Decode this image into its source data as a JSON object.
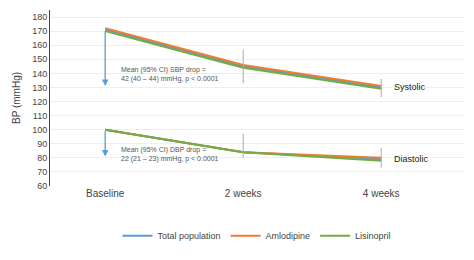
{
  "chart_data": {
    "type": "line",
    "categories": [
      "Baseline",
      "2 weeks",
      "4 weeks"
    ],
    "series": [
      {
        "name": "Total population",
        "color": "#5b9bd5",
        "values": [
          171,
          145,
          130
        ]
      },
      {
        "name": "Amlodipine",
        "color": "#ed7d31",
        "values": [
          172,
          146,
          131
        ]
      },
      {
        "name": "Lisinopril",
        "color": "#70ad47",
        "values": [
          170,
          144,
          129
        ]
      },
      {
        "name": "Total population",
        "color": "#5b9bd5",
        "values": [
          100,
          84,
          79
        ]
      },
      {
        "name": "Amlodipine",
        "color": "#ed7d31",
        "values": [
          100,
          84,
          80
        ]
      },
      {
        "name": "Lisinopril",
        "color": "#70ad47",
        "values": [
          100,
          84,
          78
        ]
      }
    ],
    "ylabel": "BP (mmHg)",
    "ylim": [
      60,
      185
    ],
    "yticks": [
      60,
      70,
      80,
      90,
      100,
      110,
      120,
      130,
      140,
      150,
      160,
      170,
      180
    ],
    "grid": true,
    "legend": "bottom",
    "arrows": [
      {
        "x": 0,
        "y_start": 171,
        "y_end": 131,
        "color": "#5b9bd5"
      },
      {
        "x": 0,
        "y_start": 100,
        "y_end": 81,
        "color": "#5b9bd5"
      }
    ],
    "vlines": [
      {
        "x": 1,
        "ymin": 133,
        "ymax": 157,
        "color": "#aaaaaa"
      },
      {
        "x": 2,
        "ymin": 123,
        "ymax": 136,
        "color": "#aaaaaa"
      },
      {
        "x": 1,
        "ymin": 80,
        "ymax": 97,
        "color": "#aaaaaa"
      },
      {
        "x": 2,
        "ymin": 73,
        "ymax": 87,
        "color": "#aaaaaa"
      }
    ],
    "annotations": [
      {
        "text": "Mean (95% CI) SBP drop =\n42 (40 – 44) mmHg, p < 0.0001",
        "x": 0.1,
        "y": 147
      },
      {
        "text": "Mean (95% CI) DBP drop =\n22 (21 – 23) mmHg, p < 0.0001",
        "x": 0.1,
        "y": 90
      },
      {
        "text": "Systolic",
        "x": 2.08,
        "y": 130
      },
      {
        "text": "Diastolic",
        "x": 2.08,
        "y": 79
      }
    ]
  }
}
